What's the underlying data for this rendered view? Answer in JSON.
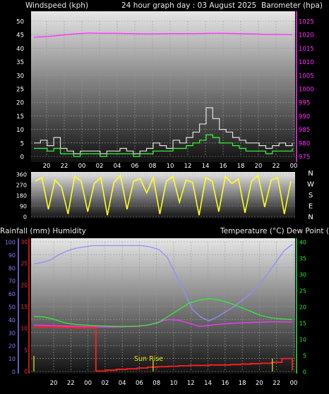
{
  "header": {
    "wind_title": "Windspeed (kph)",
    "graph_title": "24 hour graph day : 03 August 2025",
    "baro_title": "Barometer (hpa)"
  },
  "lower_header": {
    "rain_humidity_title": "Rainfall (mm)  Humidity",
    "temp_dew_title": "Temperature (°C) Dew Point (°C)"
  },
  "compass_labels": [
    "N",
    "W",
    "S",
    "E",
    "N"
  ],
  "sunrise_label": "Sun Rise",
  "colors": {
    "barometer": "#ff33ff",
    "wind_gust": "#e0e0e0",
    "wind_avg": "#33ff33",
    "wind_dir": "#ffff22",
    "humidity": "#8f8fff",
    "temperature": "#ff33ff",
    "dew_point": "#33ee33",
    "rainfall": "#ff2020",
    "rain_rate": "#cccc22",
    "panel_top": "#e6e6e6",
    "panel_bottom": "#111111"
  },
  "chart_data": [
    {
      "type": "line",
      "x_ticks": [
        "20",
        "22",
        "00",
        "02",
        "04",
        "06",
        "08",
        "10",
        "12",
        "14",
        "16",
        "18",
        "20",
        "22",
        "00"
      ],
      "y_left_ticks": [
        0,
        5,
        10,
        15,
        20,
        25,
        30,
        35,
        40,
        45,
        50
      ],
      "y_right_ticks": [
        975,
        980,
        985,
        990,
        995,
        1000,
        1005,
        1010,
        1015,
        1020,
        1025
      ],
      "ylim_left": [
        0,
        50
      ],
      "ylim_right": [
        975,
        1025
      ],
      "grid": true,
      "series": [
        {
          "key": "barometer",
          "axis": "right",
          "color": "#ff33ff",
          "values": [
            1019.1,
            1019.3,
            1019.8,
            1020.3,
            1020.6,
            1020.5,
            1020.5,
            1020.4,
            1020.3,
            1020.3,
            1020.4,
            1020.4,
            1020.4,
            1020.5,
            1020.5,
            1020.4,
            1020.3,
            1020.1,
            1020.1,
            1020.0
          ]
        },
        {
          "key": "wind_gust",
          "axis": "left",
          "color": "#e0e0e0",
          "values": [
            5,
            6,
            4,
            7,
            3,
            2,
            1,
            2,
            2,
            2,
            1,
            2,
            2,
            3,
            2,
            1,
            2,
            3,
            5,
            4,
            3,
            6,
            5,
            7,
            9,
            12,
            18,
            14,
            10,
            9,
            7,
            6,
            5,
            5,
            4,
            3,
            4,
            5,
            4,
            5
          ]
        },
        {
          "key": "wind_avg",
          "axis": "left",
          "color": "#33ff33",
          "values": [
            3,
            3,
            2,
            3,
            1,
            1,
            0,
            1,
            1,
            1,
            0,
            1,
            1,
            1,
            1,
            0,
            1,
            1,
            2,
            2,
            2,
            3,
            3,
            4,
            5,
            6,
            8,
            7,
            5,
            5,
            4,
            3,
            2,
            2,
            2,
            1,
            2,
            2,
            2,
            3
          ]
        }
      ]
    },
    {
      "type": "scatter",
      "x_ticks": [
        "20",
        "22",
        "00",
        "02",
        "04",
        "06",
        "08",
        "10",
        "12",
        "14",
        "16",
        "18",
        "20",
        "22",
        "00"
      ],
      "y_ticks": [
        0,
        90,
        180,
        270,
        360
      ],
      "ylim": [
        0,
        360
      ],
      "series": [
        {
          "key": "wind_dir",
          "color": "#ffff22",
          "values": [
            300,
            330,
            60,
            310,
            250,
            20,
            340,
            300,
            40,
            280,
            330,
            10,
            290,
            350,
            60,
            300,
            320,
            200,
            330,
            20,
            300,
            340,
            120,
            310,
            290,
            10,
            330,
            300,
            40,
            340,
            280,
            320,
            30,
            300,
            350,
            80,
            310,
            330,
            20,
            300
          ]
        }
      ]
    },
    {
      "type": "line",
      "x_ticks": [
        "20",
        "22",
        "00",
        "02",
        "04",
        "06",
        "08",
        "10",
        "12",
        "14",
        "16",
        "18",
        "20",
        "22",
        "00"
      ],
      "y_humidity_ticks": [
        0,
        10,
        20,
        30,
        40,
        50,
        60,
        70,
        80,
        90,
        100
      ],
      "y_rain_ticks": [
        0,
        5,
        10,
        15,
        20,
        25,
        30
      ],
      "y_temp_ticks": [
        0,
        5,
        10,
        15,
        20,
        25,
        30,
        35,
        40
      ],
      "ylim_humidity": [
        0,
        100
      ],
      "ylim_rain": [
        0,
        30
      ],
      "ylim_temp": [
        0,
        40
      ],
      "grid": true,
      "series": [
        {
          "key": "humidity",
          "axis": "humidity",
          "color": "#8f8fff",
          "values": [
            83,
            84,
            86,
            90,
            93,
            95,
            96,
            97,
            97,
            97,
            97,
            97,
            97,
            97,
            96,
            94,
            88,
            75,
            62,
            48,
            42,
            39,
            42,
            46,
            50,
            55,
            60,
            67,
            75,
            84,
            93,
            98
          ]
        },
        {
          "key": "temperature",
          "axis": "temp",
          "color": "#ff33ff",
          "values": [
            14.3,
            14.2,
            14.1,
            14.0,
            13.9,
            13.8,
            13.7,
            13.7,
            13.7,
            13.8,
            13.9,
            14.3,
            15.2,
            16.0,
            15.8,
            14.9,
            13.9,
            14.2,
            14.6,
            14.8,
            15.0,
            15.1,
            15.2,
            15.3,
            15.3,
            15.2
          ]
        },
        {
          "key": "dew_point",
          "axis": "temp",
          "color": "#33ee33",
          "values": [
            17.0,
            16.8,
            16.0,
            15.0,
            14.5,
            14.3,
            14.1,
            14.0,
            13.9,
            13.9,
            14.0,
            14.3,
            15.0,
            17.0,
            19.0,
            21.0,
            22.0,
            22.5,
            22.0,
            21.0,
            19.8,
            18.5,
            17.2,
            16.5,
            16.2,
            16.0
          ]
        },
        {
          "key": "rainfall",
          "axis": "rain",
          "color": "#ff2020",
          "values": [
            10.3,
            10.3,
            10.2,
            10.2,
            10.1,
            10.1,
            0.1,
            0.3,
            0.5,
            0.6,
            0.8,
            1.0,
            1.1,
            1.2,
            1.3,
            1.4,
            1.4,
            1.5,
            1.5,
            1.6,
            1.7,
            1.8,
            1.9,
            2.1,
            3.0,
            0.3
          ]
        },
        {
          "key": "rain_rate",
          "axis": "rain",
          "color": "#cccc22",
          "values": [
            3.6,
            0,
            0,
            0,
            0,
            0,
            2.6,
            0,
            0,
            0,
            0,
            0,
            3.0,
            0
          ]
        }
      ]
    }
  ]
}
